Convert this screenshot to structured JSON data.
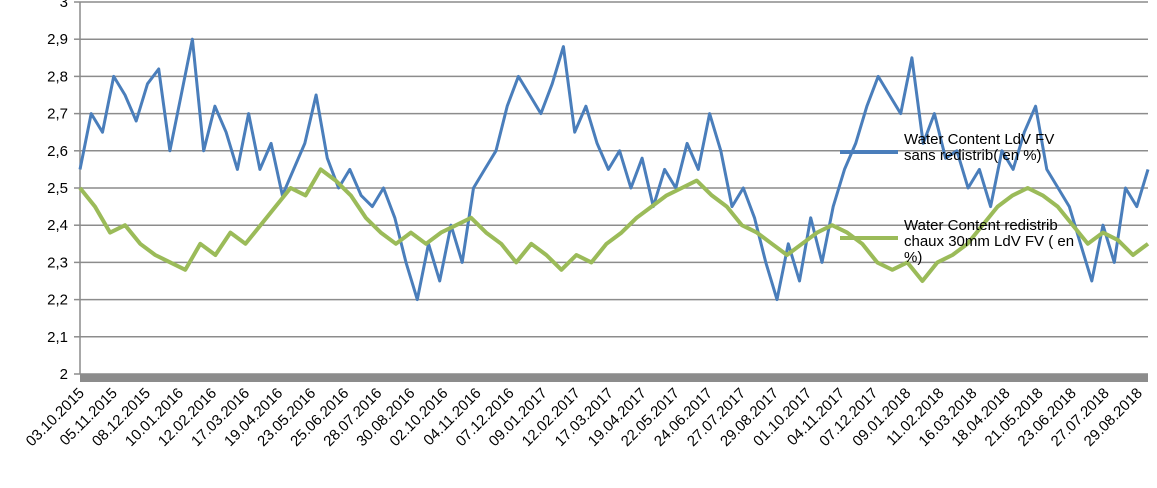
{
  "chart_data": {
    "type": "line",
    "title": "",
    "xlabel": "",
    "ylabel": "",
    "ylim": [
      2,
      3
    ],
    "y_ticks": [
      "2",
      "2,1",
      "2,2",
      "2,3",
      "2,4",
      "2,5",
      "2,6",
      "2,7",
      "2,8",
      "2,9",
      "3"
    ],
    "x_ticks": [
      "03.10.2015",
      "05.11.2015",
      "08.12.2015",
      "10.01.2016",
      "12.02.2016",
      "17.03.2016",
      "19.04.2016",
      "23.05.2016",
      "25.06.2016",
      "28.07.2016",
      "30.08.2016",
      "02.10.2016",
      "04.11.2016",
      "07.12.2016",
      "09.01.2017",
      "12.02.2017",
      "17.03.2017",
      "19.04.2017",
      "22.05.2017",
      "24.06.2017",
      "27.07.2017",
      "29.08.2017",
      "01.10.2017",
      "04.11.2017",
      "07.12.2017",
      "09.01.2018",
      "11.02.2018",
      "16.03.2018",
      "18.04.2018",
      "21.05.2018",
      "23.06.2018",
      "27.07.2018",
      "29.08.2018"
    ],
    "grid": true,
    "legend_position": "right",
    "series": [
      {
        "name": "Water Content  LdV FV sans redistrib( en %)",
        "color": "#4a7ebb",
        "values": [
          2.55,
          2.7,
          2.65,
          2.8,
          2.75,
          2.68,
          2.78,
          2.82,
          2.6,
          2.75,
          2.9,
          2.6,
          2.72,
          2.65,
          2.55,
          2.7,
          2.55,
          2.62,
          2.48,
          2.55,
          2.62,
          2.75,
          2.58,
          2.5,
          2.55,
          2.48,
          2.45,
          2.5,
          2.42,
          2.3,
          2.2,
          2.35,
          2.25,
          2.4,
          2.3,
          2.5,
          2.55,
          2.6,
          2.72,
          2.8,
          2.75,
          2.7,
          2.78,
          2.88,
          2.65,
          2.72,
          2.62,
          2.55,
          2.6,
          2.5,
          2.58,
          2.45,
          2.55,
          2.5,
          2.62,
          2.55,
          2.7,
          2.6,
          2.45,
          2.5,
          2.42,
          2.3,
          2.2,
          2.35,
          2.25,
          2.42,
          2.3,
          2.45,
          2.55,
          2.62,
          2.72,
          2.8,
          2.75,
          2.7,
          2.85,
          2.62,
          2.7,
          2.58,
          2.6,
          2.5,
          2.55,
          2.45,
          2.6,
          2.55,
          2.65,
          2.72,
          2.55,
          2.5,
          2.45,
          2.35,
          2.25,
          2.4,
          2.3,
          2.5,
          2.45,
          2.55
        ]
      },
      {
        "name": "Water Content redistrib chaux  30mm LdV FV ( en %)",
        "color": "#9bbb59",
        "values": [
          2.5,
          2.45,
          2.38,
          2.4,
          2.35,
          2.32,
          2.3,
          2.28,
          2.35,
          2.32,
          2.38,
          2.35,
          2.4,
          2.45,
          2.5,
          2.48,
          2.55,
          2.52,
          2.48,
          2.42,
          2.38,
          2.35,
          2.38,
          2.35,
          2.38,
          2.4,
          2.42,
          2.38,
          2.35,
          2.3,
          2.35,
          2.32,
          2.28,
          2.32,
          2.3,
          2.35,
          2.38,
          2.42,
          2.45,
          2.48,
          2.5,
          2.52,
          2.48,
          2.45,
          2.4,
          2.38,
          2.35,
          2.32,
          2.35,
          2.38,
          2.4,
          2.38,
          2.35,
          2.3,
          2.28,
          2.3,
          2.25,
          2.3,
          2.32,
          2.35,
          2.4,
          2.45,
          2.48,
          2.5,
          2.48,
          2.45,
          2.4,
          2.35,
          2.38,
          2.36,
          2.32,
          2.35
        ]
      }
    ]
  }
}
